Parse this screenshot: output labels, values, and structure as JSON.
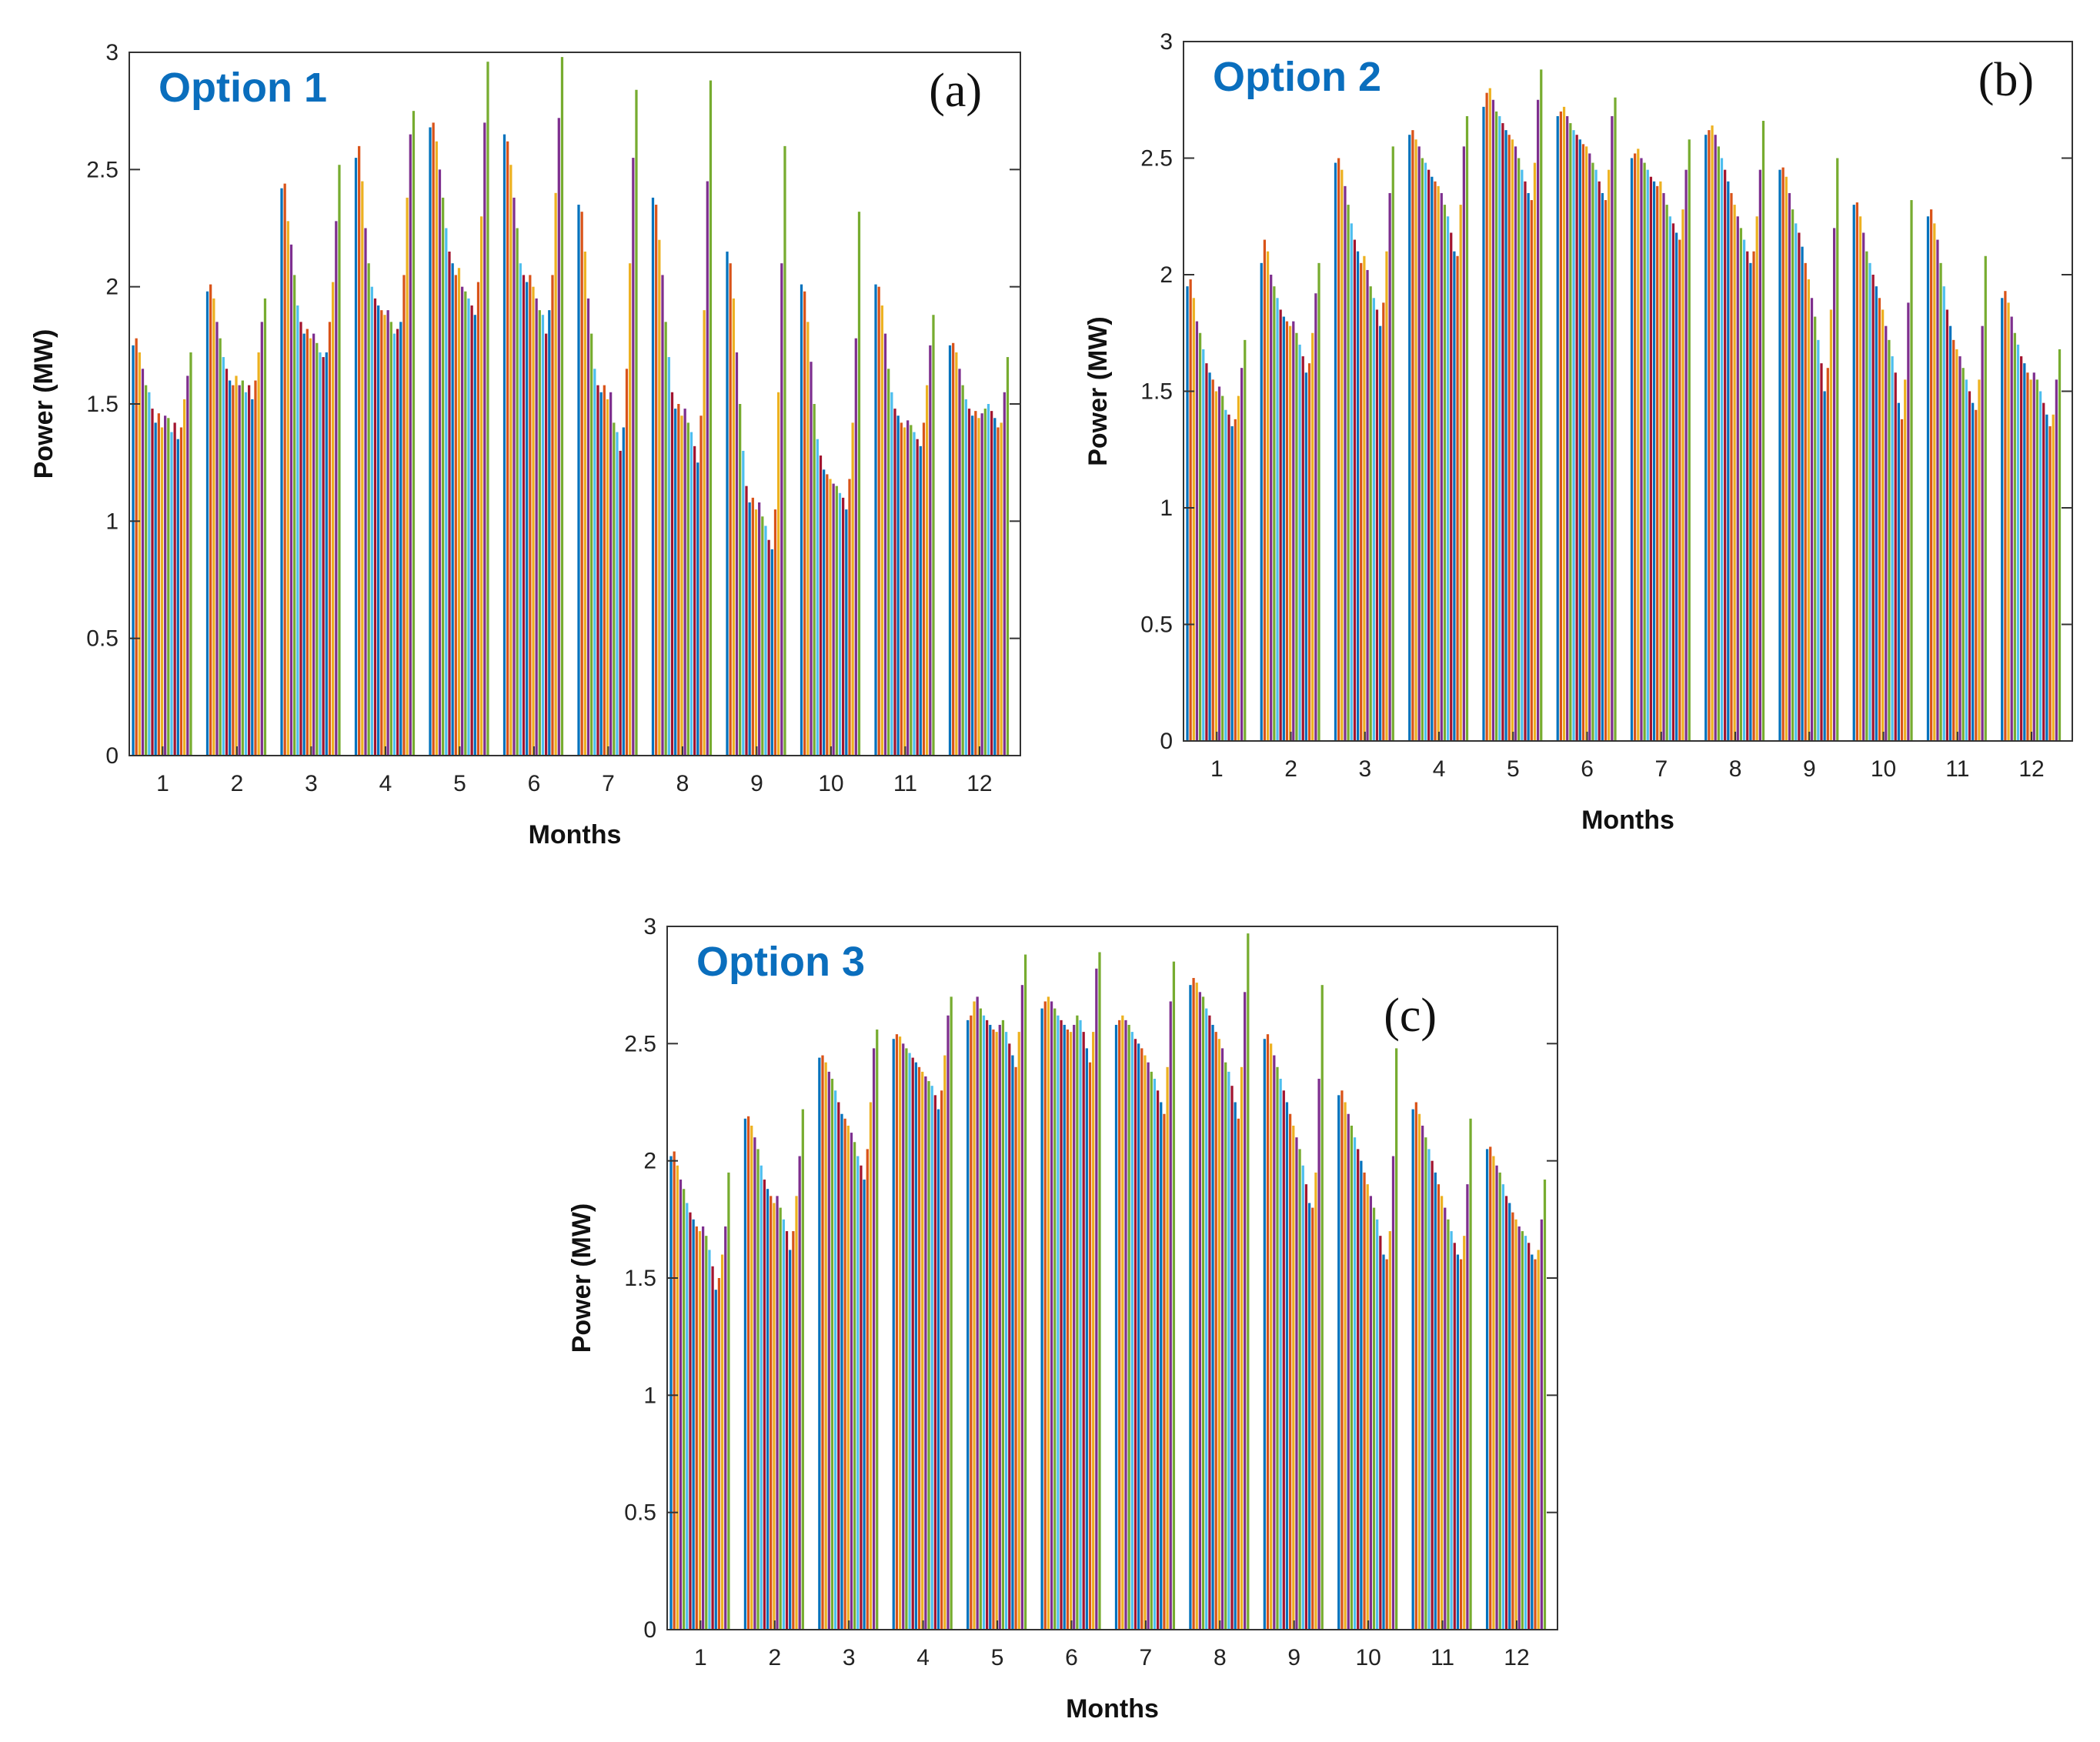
{
  "colors": {
    "option_label": "#0a6ebd",
    "axis": "#333333",
    "series": [
      "#0072bd",
      "#d95319",
      "#edb120",
      "#7e2f8e",
      "#77ac30",
      "#4dbeee",
      "#a2142f"
    ]
  },
  "chart_data": [
    {
      "type": "bar",
      "title": "Option 1",
      "panel": "(a)",
      "xlabel": "Months",
      "ylabel": "Power (MW)",
      "ylim": [
        0,
        3
      ],
      "yticks": [
        "0",
        "0.5",
        "1",
        "1.5",
        "2",
        "2.5",
        "3"
      ],
      "categories": [
        "1",
        "2",
        "3",
        "4",
        "5",
        "6",
        "7",
        "8",
        "9",
        "10",
        "11",
        "12"
      ],
      "groups": [
        [
          1.75,
          1.78,
          1.72,
          1.65,
          1.58,
          1.55,
          1.48,
          1.42,
          1.46,
          1.4,
          1.45,
          1.44,
          1.38,
          1.42,
          1.35,
          1.4,
          1.52,
          1.62,
          1.72
        ],
        [
          1.98,
          2.01,
          1.95,
          1.85,
          1.78,
          1.7,
          1.65,
          1.6,
          1.58,
          1.62,
          1.58,
          1.6,
          1.55,
          1.58,
          1.52,
          1.6,
          1.72,
          1.85,
          1.95
        ],
        [
          2.42,
          2.44,
          2.28,
          2.18,
          2.05,
          1.92,
          1.85,
          1.8,
          1.82,
          1.78,
          1.8,
          1.76,
          1.72,
          1.7,
          1.72,
          1.85,
          2.02,
          2.28,
          2.52
        ],
        [
          2.55,
          2.6,
          2.45,
          2.25,
          2.1,
          2.0,
          1.95,
          1.92,
          1.9,
          1.88,
          1.9,
          1.85,
          1.8,
          1.82,
          1.85,
          2.05,
          2.38,
          2.65,
          2.75
        ],
        [
          2.68,
          2.7,
          2.62,
          2.5,
          2.38,
          2.25,
          2.15,
          2.1,
          2.05,
          2.08,
          2.0,
          1.98,
          1.95,
          1.92,
          1.88,
          2.02,
          2.3,
          2.7,
          2.96
        ],
        [
          2.65,
          2.62,
          2.52,
          2.38,
          2.25,
          2.1,
          2.05,
          2.02,
          2.05,
          2.0,
          1.95,
          1.9,
          1.88,
          1.8,
          1.9,
          2.05,
          2.4,
          2.72,
          2.98
        ],
        [
          2.35,
          2.32,
          2.15,
          1.95,
          1.8,
          1.65,
          1.58,
          1.55,
          1.58,
          1.52,
          1.55,
          1.42,
          1.38,
          1.3,
          1.4,
          1.65,
          2.1,
          2.55,
          2.84
        ],
        [
          2.38,
          2.35,
          2.2,
          2.05,
          1.85,
          1.7,
          1.55,
          1.48,
          1.5,
          1.45,
          1.48,
          1.42,
          1.38,
          1.32,
          1.25,
          1.45,
          1.9,
          2.45,
          2.88
        ],
        [
          2.15,
          2.1,
          1.95,
          1.72,
          1.5,
          1.3,
          1.15,
          1.08,
          1.1,
          1.05,
          1.08,
          1.02,
          0.98,
          0.92,
          0.88,
          1.05,
          1.55,
          2.1,
          2.6
        ],
        [
          2.01,
          1.98,
          1.85,
          1.68,
          1.5,
          1.35,
          1.28,
          1.22,
          1.2,
          1.18,
          1.16,
          1.15,
          1.12,
          1.1,
          1.05,
          1.18,
          1.42,
          1.78,
          2.32
        ],
        [
          2.01,
          2.0,
          1.92,
          1.8,
          1.65,
          1.55,
          1.48,
          1.45,
          1.42,
          1.4,
          1.43,
          1.41,
          1.38,
          1.35,
          1.32,
          1.42,
          1.58,
          1.75,
          1.88
        ],
        [
          1.75,
          1.76,
          1.72,
          1.65,
          1.58,
          1.52,
          1.48,
          1.45,
          1.47,
          1.44,
          1.46,
          1.48,
          1.5,
          1.47,
          1.44,
          1.4,
          1.42,
          1.55,
          1.7
        ]
      ]
    },
    {
      "type": "bar",
      "title": "Option 2",
      "panel": "(b)",
      "xlabel": "Months",
      "ylabel": "Power (MW)",
      "ylim": [
        0,
        3
      ],
      "yticks": [
        "0",
        "0.5",
        "1",
        "1.5",
        "2",
        "2.5",
        "3"
      ],
      "categories": [
        "1",
        "2",
        "3",
        "4",
        "5",
        "6",
        "7",
        "8",
        "9",
        "10",
        "11",
        "12"
      ],
      "groups": [
        [
          1.95,
          1.98,
          1.9,
          1.8,
          1.75,
          1.68,
          1.62,
          1.58,
          1.55,
          1.5,
          1.52,
          1.48,
          1.42,
          1.4,
          1.35,
          1.38,
          1.48,
          1.6,
          1.72
        ],
        [
          2.05,
          2.15,
          2.1,
          2.0,
          1.95,
          1.9,
          1.85,
          1.82,
          1.8,
          1.78,
          1.8,
          1.75,
          1.7,
          1.65,
          1.58,
          1.62,
          1.75,
          1.92,
          2.05
        ],
        [
          2.48,
          2.5,
          2.45,
          2.38,
          2.3,
          2.22,
          2.15,
          2.1,
          2.05,
          2.08,
          2.02,
          1.95,
          1.9,
          1.85,
          1.78,
          1.88,
          2.1,
          2.35,
          2.55
        ],
        [
          2.6,
          2.62,
          2.58,
          2.55,
          2.5,
          2.48,
          2.45,
          2.42,
          2.4,
          2.38,
          2.35,
          2.3,
          2.25,
          2.18,
          2.1,
          2.08,
          2.3,
          2.55,
          2.68
        ],
        [
          2.72,
          2.78,
          2.8,
          2.75,
          2.7,
          2.68,
          2.65,
          2.62,
          2.6,
          2.58,
          2.55,
          2.5,
          2.45,
          2.4,
          2.35,
          2.32,
          2.48,
          2.75,
          2.88
        ],
        [
          2.68,
          2.7,
          2.72,
          2.68,
          2.65,
          2.62,
          2.6,
          2.58,
          2.56,
          2.55,
          2.52,
          2.48,
          2.45,
          2.4,
          2.35,
          2.32,
          2.45,
          2.68,
          2.76
        ],
        [
          2.5,
          2.52,
          2.54,
          2.5,
          2.48,
          2.45,
          2.42,
          2.4,
          2.38,
          2.4,
          2.35,
          2.3,
          2.25,
          2.22,
          2.18,
          2.15,
          2.28,
          2.45,
          2.58
        ],
        [
          2.6,
          2.62,
          2.64,
          2.6,
          2.55,
          2.5,
          2.45,
          2.4,
          2.35,
          2.3,
          2.25,
          2.2,
          2.15,
          2.1,
          2.05,
          2.1,
          2.25,
          2.45,
          2.66
        ],
        [
          2.45,
          2.46,
          2.42,
          2.35,
          2.28,
          2.22,
          2.18,
          2.12,
          2.05,
          1.98,
          1.9,
          1.82,
          1.72,
          1.62,
          1.5,
          1.6,
          1.85,
          2.2,
          2.5
        ],
        [
          2.3,
          2.31,
          2.25,
          2.18,
          2.1,
          2.05,
          2.0,
          1.95,
          1.9,
          1.85,
          1.78,
          1.72,
          1.65,
          1.58,
          1.45,
          1.38,
          1.55,
          1.88,
          2.32
        ],
        [
          2.25,
          2.28,
          2.22,
          2.15,
          2.05,
          1.95,
          1.85,
          1.78,
          1.72,
          1.68,
          1.65,
          1.6,
          1.55,
          1.5,
          1.45,
          1.42,
          1.55,
          1.78,
          2.08
        ],
        [
          1.9,
          1.93,
          1.88,
          1.82,
          1.75,
          1.7,
          1.65,
          1.62,
          1.58,
          1.55,
          1.58,
          1.55,
          1.5,
          1.45,
          1.4,
          1.35,
          1.4,
          1.55,
          1.68
        ]
      ]
    },
    {
      "type": "bar",
      "title": "Option 3",
      "panel": "(c)",
      "xlabel": "Months",
      "ylabel": "Power (MW)",
      "ylim": [
        0,
        3
      ],
      "yticks": [
        "0",
        "0.5",
        "1",
        "1.5",
        "2",
        "2.5",
        "3"
      ],
      "categories": [
        "1",
        "2",
        "3",
        "4",
        "5",
        "6",
        "7",
        "8",
        "9",
        "10",
        "11",
        "12"
      ],
      "groups": [
        [
          2.02,
          2.04,
          1.98,
          1.92,
          1.88,
          1.82,
          1.78,
          1.75,
          1.72,
          1.7,
          1.72,
          1.68,
          1.62,
          1.55,
          1.45,
          1.5,
          1.6,
          1.72,
          1.95
        ],
        [
          2.18,
          2.19,
          2.15,
          2.1,
          2.05,
          1.98,
          1.92,
          1.88,
          1.85,
          1.82,
          1.85,
          1.8,
          1.75,
          1.7,
          1.62,
          1.7,
          1.85,
          2.02,
          2.22
        ],
        [
          2.44,
          2.45,
          2.42,
          2.38,
          2.35,
          2.3,
          2.25,
          2.2,
          2.18,
          2.15,
          2.12,
          2.08,
          2.02,
          1.98,
          1.92,
          2.05,
          2.25,
          2.48,
          2.56
        ],
        [
          2.52,
          2.54,
          2.53,
          2.5,
          2.48,
          2.46,
          2.44,
          2.42,
          2.4,
          2.38,
          2.36,
          2.34,
          2.32,
          2.28,
          2.22,
          2.3,
          2.45,
          2.62,
          2.7
        ],
        [
          2.6,
          2.62,
          2.68,
          2.7,
          2.65,
          2.62,
          2.6,
          2.58,
          2.56,
          2.55,
          2.58,
          2.6,
          2.55,
          2.5,
          2.45,
          2.4,
          2.55,
          2.75,
          2.88
        ],
        [
          2.65,
          2.68,
          2.7,
          2.68,
          2.65,
          2.62,
          2.6,
          2.58,
          2.56,
          2.55,
          2.58,
          2.62,
          2.6,
          2.55,
          2.48,
          2.42,
          2.55,
          2.82,
          2.89
        ],
        [
          2.58,
          2.6,
          2.62,
          2.6,
          2.58,
          2.55,
          2.52,
          2.5,
          2.48,
          2.45,
          2.42,
          2.38,
          2.35,
          2.3,
          2.25,
          2.2,
          2.4,
          2.68,
          2.85
        ],
        [
          2.75,
          2.78,
          2.76,
          2.72,
          2.7,
          2.65,
          2.62,
          2.58,
          2.55,
          2.52,
          2.48,
          2.42,
          2.38,
          2.32,
          2.25,
          2.18,
          2.4,
          2.72,
          2.97
        ],
        [
          2.52,
          2.54,
          2.5,
          2.45,
          2.4,
          2.35,
          2.3,
          2.25,
          2.2,
          2.15,
          2.1,
          2.05,
          1.98,
          1.9,
          1.82,
          1.8,
          1.95,
          2.35,
          2.75
        ],
        [
          2.28,
          2.3,
          2.25,
          2.2,
          2.15,
          2.1,
          2.05,
          2.0,
          1.95,
          1.9,
          1.85,
          1.8,
          1.75,
          1.68,
          1.6,
          1.58,
          1.7,
          2.02,
          2.48
        ],
        [
          2.22,
          2.25,
          2.2,
          2.15,
          2.1,
          2.05,
          2.0,
          1.95,
          1.9,
          1.85,
          1.8,
          1.75,
          1.7,
          1.65,
          1.6,
          1.58,
          1.68,
          1.9,
          2.18
        ],
        [
          2.05,
          2.06,
          2.02,
          1.98,
          1.95,
          1.9,
          1.85,
          1.82,
          1.78,
          1.75,
          1.72,
          1.7,
          1.68,
          1.65,
          1.6,
          1.58,
          1.62,
          1.75,
          1.92
        ]
      ]
    }
  ]
}
